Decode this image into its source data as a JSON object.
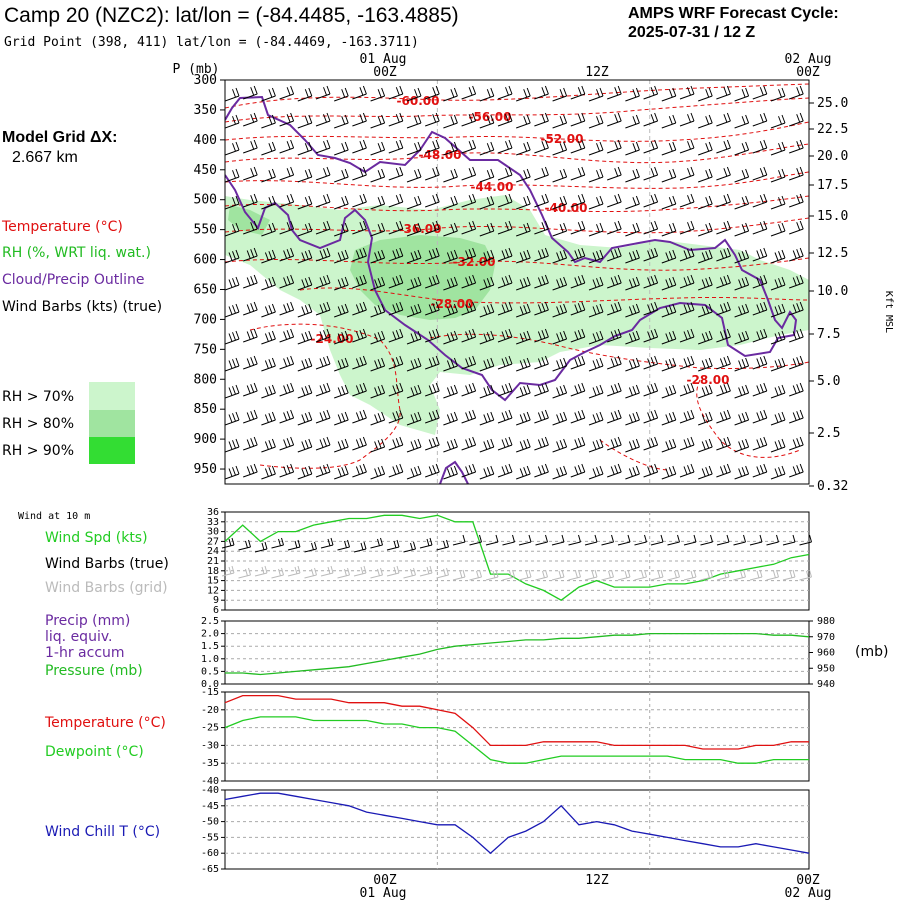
{
  "header": {
    "title": "Camp 20 (NZC2):  lat/lon = (-84.4485, -163.4885)",
    "grid_point": "Grid Point (398, 411) lat/lon = (-84.4469, -163.3711)",
    "cycle_line1": "AMPS WRF Forecast Cycle:",
    "cycle_line2": "2025-07-31 / 12  Z"
  },
  "left_panel": {
    "model_grid_line1": "Model Grid ΔX:",
    "model_grid_line2": "2.667 km",
    "temperature": "Temperature (°C)",
    "rh": "RH (%, WRT liq. wat.)",
    "cloud": "Cloud/Precip Outline",
    "wind_barbs": "Wind Barbs (kts) (true)",
    "rh_levels": [
      "RH > 70%",
      "RH > 80%",
      "RH > 90%"
    ],
    "wind_at_10m": "Wind at 10 m",
    "wind_spd": "Wind Spd (kts)",
    "wind_barbs_true": "Wind Barbs (true)",
    "wind_barbs_grid": "Wind Barbs (grid)",
    "precip_1": "Precip (mm)",
    "precip_2": "liq. equiv.",
    "precip_3": "1-hr accum",
    "pressure": "Pressure (mb)",
    "temp_lbl": "Temperature (°C)",
    "dew_lbl": "Dewpoint (°C)",
    "wchill_lbl": "Wind Chill T (°C)"
  },
  "time_axis": {
    "top_dates": [
      "01 Aug",
      "02 Aug"
    ],
    "labels": [
      "00Z",
      "12Z",
      "00Z"
    ],
    "bottom_dates": [
      "01 Aug",
      "02 Aug"
    ]
  },
  "colors": {
    "temperature": "#e01010",
    "rh70": "#ccf5cc",
    "rh80": "#a0e4a0",
    "rh90": "#33dd33",
    "cloud": "#6a2aa0",
    "wind_spd": "#22cc22",
    "pressure": "#22bb22",
    "dewpoint": "#22cc22",
    "wind_chill": "#1a1ab4",
    "grid_barb": "#bbbbbb",
    "precip_label": "#6a2aa0",
    "gridline": "#aaaaaa"
  },
  "icons": {
    "rh_legend": "color-swatch",
    "barbs": "wind-barb-icon"
  },
  "chart_data": [
    {
      "type": "contour",
      "name": "vertical-cross-section",
      "xaxis": {
        "time_hours_from_cycle_start": [
          0,
          33
        ],
        "ticks": [
          "00Z",
          "12Z",
          "00Z"
        ]
      },
      "yaxis_pressure": {
        "label": "P (mb)",
        "ticks": [
          300,
          350,
          400,
          450,
          500,
          550,
          600,
          650,
          700,
          750,
          800,
          850,
          900,
          950
        ],
        "range": [
          300,
          975
        ]
      },
      "yaxis_height": {
        "label": "Kft MSL",
        "ticks": [
          "25.0",
          "22.5",
          "20.0",
          "17.5",
          "15.0",
          "12.5",
          "10.0",
          "7.5",
          "5.0",
          "2.5",
          "0.32"
        ]
      },
      "temperature_contour_labels": [
        "-60.00",
        "-56.00",
        "-52.00",
        "-48.00",
        "-44.00",
        "-40.00",
        "-36.00",
        "-32.00",
        "-28.00",
        "-24.00",
        "-28.00"
      ]
    },
    {
      "type": "line",
      "name": "wind-speed",
      "ylim": [
        6,
        36
      ],
      "yticks": [
        6,
        9,
        12,
        15,
        18,
        21,
        24,
        27,
        30,
        33,
        36
      ],
      "series": [
        {
          "name": "Wind Spd (kts)",
          "x": [
            0,
            1,
            2,
            3,
            4,
            5,
            6,
            7,
            8,
            9,
            10,
            11,
            12,
            13,
            14,
            15,
            16,
            17,
            18,
            19,
            20,
            21,
            22,
            23,
            24,
            25,
            26,
            27,
            28,
            29,
            30,
            31,
            32,
            33
          ],
          "values": [
            27,
            32,
            27,
            30,
            30,
            32,
            33,
            34,
            34,
            35,
            35,
            34,
            35,
            33,
            33,
            17,
            17,
            14,
            12,
            9,
            13,
            15,
            13,
            13,
            13,
            14,
            14,
            15,
            17,
            18,
            19,
            20,
            22,
            23
          ]
        }
      ]
    },
    {
      "type": "line",
      "name": "precip-pressure",
      "ylim_left": [
        0.0,
        2.5
      ],
      "yticks_left": [
        "2.5",
        "2.0",
        "1.5",
        "1.0",
        "0.5",
        "0.0"
      ],
      "ylim_right": [
        940,
        980
      ],
      "yticks_right": [
        980,
        970,
        960,
        950,
        940
      ],
      "right_unit": "(mb)",
      "series": [
        {
          "name": "Pressure (mb)",
          "x": [
            0,
            1,
            2,
            3,
            4,
            5,
            6,
            7,
            8,
            9,
            10,
            11,
            12,
            13,
            14,
            15,
            16,
            17,
            18,
            19,
            20,
            21,
            22,
            23,
            24,
            25,
            26,
            27,
            28,
            29,
            30,
            31,
            32,
            33
          ],
          "values": [
            947,
            947,
            946,
            947,
            948,
            949,
            950,
            951,
            953,
            955,
            957,
            959,
            962,
            964,
            965,
            966,
            967,
            968,
            968,
            969,
            969,
            970,
            971,
            971,
            972,
            972,
            972,
            972,
            972,
            972,
            972,
            971,
            971,
            970
          ]
        }
      ]
    },
    {
      "type": "line",
      "name": "temperature-dewpoint",
      "ylim": [
        -40,
        -15
      ],
      "yticks": [
        -15,
        -20,
        -25,
        -30,
        -35,
        -40
      ],
      "series": [
        {
          "name": "Temperature (°C)",
          "x": [
            0,
            1,
            2,
            3,
            4,
            5,
            6,
            7,
            8,
            9,
            10,
            11,
            12,
            13,
            14,
            15,
            16,
            17,
            18,
            19,
            20,
            21,
            22,
            23,
            24,
            25,
            26,
            27,
            28,
            29,
            30,
            31,
            32,
            33
          ],
          "values": [
            -18,
            -16,
            -16,
            -16,
            -17,
            -17,
            -17,
            -18,
            -18,
            -18,
            -19,
            -19,
            -20,
            -21,
            -25,
            -30,
            -30,
            -30,
            -29,
            -29,
            -29,
            -29,
            -30,
            -30,
            -30,
            -30,
            -30,
            -31,
            -31,
            -31,
            -30,
            -30,
            -29,
            -29
          ]
        },
        {
          "name": "Dewpoint (°C)",
          "x": [
            0,
            1,
            2,
            3,
            4,
            5,
            6,
            7,
            8,
            9,
            10,
            11,
            12,
            13,
            14,
            15,
            16,
            17,
            18,
            19,
            20,
            21,
            22,
            23,
            24,
            25,
            26,
            27,
            28,
            29,
            30,
            31,
            32,
            33
          ],
          "values": [
            -25,
            -23,
            -22,
            -22,
            -22,
            -23,
            -23,
            -23,
            -23,
            -24,
            -24,
            -25,
            -25,
            -26,
            -30,
            -34,
            -35,
            -35,
            -34,
            -33,
            -33,
            -33,
            -33,
            -33,
            -33,
            -33,
            -34,
            -34,
            -34,
            -35,
            -35,
            -34,
            -34,
            -34
          ]
        }
      ]
    },
    {
      "type": "line",
      "name": "wind-chill",
      "ylim": [
        -65,
        -40
      ],
      "yticks": [
        -40,
        -45,
        -50,
        -55,
        -60,
        -65
      ],
      "series": [
        {
          "name": "Wind Chill T (°C)",
          "x": [
            0,
            1,
            2,
            3,
            4,
            5,
            6,
            7,
            8,
            9,
            10,
            11,
            12,
            13,
            14,
            15,
            16,
            17,
            18,
            19,
            20,
            21,
            22,
            23,
            24,
            25,
            26,
            27,
            28,
            29,
            30,
            31,
            32,
            33
          ],
          "values": [
            -43,
            -42,
            -41,
            -41,
            -42,
            -43,
            -44,
            -45,
            -47,
            -48,
            -49,
            -50,
            -51,
            -51,
            -55,
            -60,
            -55,
            -53,
            -50,
            -45,
            -51,
            -50,
            -51,
            -53,
            -54,
            -55,
            -56,
            -57,
            -58,
            -58,
            -57,
            -58,
            -59,
            -60
          ]
        }
      ]
    }
  ]
}
